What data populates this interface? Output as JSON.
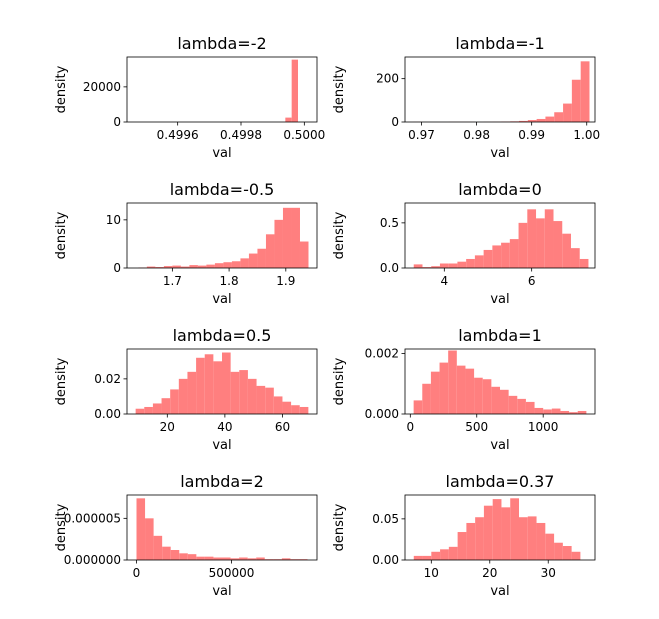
{
  "chart_data": [
    {
      "type": "bar",
      "title": "lambda=-2",
      "xlabel": "val",
      "ylabel": "density",
      "xlim": [
        0.49944,
        0.50004
      ],
      "ylim": [
        0,
        37000
      ],
      "xticks": [
        0.4996,
        0.4998,
        0.5
      ],
      "xtick_labels": [
        "0.4996",
        "0.4998",
        "0.5000"
      ],
      "yticks": [
        0,
        20000
      ],
      "ytick_labels": [
        "0",
        "20000"
      ],
      "bin_edges": [
        0.49994,
        0.49996,
        0.49998
      ],
      "values": [
        2500,
        35500
      ],
      "bar_color": "#ff7f7f"
    },
    {
      "type": "bar",
      "title": "lambda=-1",
      "xlabel": "val",
      "ylabel": "density",
      "xlim": [
        0.967,
        1.0015
      ],
      "ylim": [
        0,
        300
      ],
      "xticks": [
        0.97,
        0.98,
        0.99,
        1.0
      ],
      "xtick_labels": [
        "0.97",
        "0.98",
        "0.99",
        "1.00"
      ],
      "yticks": [
        0,
        200
      ],
      "ytick_labels": [
        "0",
        "200"
      ],
      "bin_edges": [
        0.9685,
        0.9701,
        0.9717,
        0.9733,
        0.9749,
        0.9765,
        0.9781,
        0.9797,
        0.9813,
        0.9829,
        0.9845,
        0.9861,
        0.9877,
        0.9893,
        0.9909,
        0.9925,
        0.9941,
        0.9957,
        0.9973,
        0.9989,
        1.0005
      ],
      "values": [
        0.5,
        0,
        0,
        0,
        0.5,
        0.5,
        0.5,
        0,
        0.5,
        1,
        2,
        3,
        5,
        9,
        14,
        25,
        45,
        85,
        195,
        280
      ],
      "bar_color": "#ff7f7f"
    },
    {
      "type": "bar",
      "title": "lambda=-0.5",
      "xlabel": "val",
      "ylabel": "density",
      "xlim": [
        1.62,
        1.955
      ],
      "ylim": [
        0,
        13.5
      ],
      "xticks": [
        1.7,
        1.8,
        1.9
      ],
      "xtick_labels": [
        "1.7",
        "1.8",
        "1.9"
      ],
      "yticks": [
        0,
        10
      ],
      "ytick_labels": [
        "0",
        "10"
      ],
      "bin_edges": [
        1.64,
        1.655,
        1.67,
        1.685,
        1.7,
        1.715,
        1.73,
        1.745,
        1.76,
        1.775,
        1.79,
        1.805,
        1.82,
        1.835,
        1.85,
        1.865,
        1.88,
        1.895,
        1.91,
        1.925,
        1.94
      ],
      "values": [
        0.1,
        0.3,
        0.2,
        0.4,
        0.5,
        0.3,
        0.6,
        0.5,
        0.7,
        1.0,
        1.2,
        1.4,
        2.0,
        3.0,
        4.0,
        7.0,
        10.0,
        12.5,
        12.5,
        5.5
      ],
      "bar_color": "#ff7f7f"
    },
    {
      "type": "bar",
      "title": "lambda=0",
      "xlabel": "val",
      "ylabel": "density",
      "xlim": [
        3.1,
        7.45
      ],
      "ylim": [
        0,
        0.72
      ],
      "xticks": [
        4,
        6
      ],
      "xtick_labels": [
        "4",
        "6"
      ],
      "yticks": [
        0,
        0.5
      ],
      "ytick_labels": [
        "0.0",
        "0.5"
      ],
      "bin_edges": [
        3.3,
        3.5,
        3.7,
        3.9,
        4.1,
        4.3,
        4.5,
        4.7,
        4.9,
        5.1,
        5.3,
        5.5,
        5.7,
        5.9,
        6.1,
        6.3,
        6.5,
        6.7,
        6.9,
        7.1,
        7.3
      ],
      "values": [
        0.04,
        0.01,
        0.02,
        0.05,
        0.05,
        0.07,
        0.1,
        0.14,
        0.2,
        0.25,
        0.28,
        0.32,
        0.5,
        0.65,
        0.55,
        0.65,
        0.52,
        0.38,
        0.22,
        0.1
      ],
      "bar_color": "#ff7f7f"
    },
    {
      "type": "bar",
      "title": "lambda=0.5",
      "xlabel": "val",
      "ylabel": "density",
      "xlim": [
        6,
        72
      ],
      "ylim": [
        0,
        0.037
      ],
      "xticks": [
        20,
        40,
        60
      ],
      "xtick_labels": [
        "20",
        "40",
        "60"
      ],
      "yticks": [
        0,
        0.02
      ],
      "ytick_labels": [
        "0.00",
        "0.02"
      ],
      "bin_edges": [
        9,
        12,
        15,
        18,
        21,
        24,
        27,
        30,
        33,
        36,
        39,
        42,
        45,
        48,
        51,
        54,
        57,
        60,
        63,
        66,
        69
      ],
      "values": [
        0.003,
        0.004,
        0.006,
        0.009,
        0.014,
        0.02,
        0.024,
        0.032,
        0.034,
        0.03,
        0.035,
        0.024,
        0.025,
        0.02,
        0.016,
        0.015,
        0.01,
        0.007,
        0.005,
        0.004
      ],
      "bar_color": "#ff7f7f"
    },
    {
      "type": "bar",
      "title": "lambda=1",
      "xlabel": "val",
      "ylabel": "density",
      "xlim": [
        -40,
        1390
      ],
      "ylim": [
        0,
        0.00215
      ],
      "xticks": [
        0,
        500,
        1000
      ],
      "xtick_labels": [
        "0",
        "500",
        "1000"
      ],
      "yticks": [
        0,
        0.002
      ],
      "ytick_labels": [
        "0.000",
        "0.002"
      ],
      "bin_edges": [
        25,
        90,
        155,
        220,
        285,
        350,
        415,
        480,
        545,
        610,
        675,
        740,
        805,
        870,
        935,
        1000,
        1065,
        1130,
        1195,
        1260,
        1325
      ],
      "values": [
        0.00045,
        0.001,
        0.0014,
        0.0017,
        0.0021,
        0.0016,
        0.0015,
        0.0012,
        0.00115,
        0.0009,
        0.0008,
        0.0006,
        0.0005,
        0.0004,
        0.0002,
        0.00015,
        0.00018,
        0.0001,
        6e-05,
        0.0001
      ],
      "bar_color": "#ff7f7f"
    },
    {
      "type": "bar",
      "title": "lambda=2",
      "xlabel": "val",
      "ylabel": "density",
      "xlim": [
        -50000,
        950000
      ],
      "ylim": [
        0,
        7.8e-06
      ],
      "xticks": [
        0,
        500000
      ],
      "xtick_labels": [
        "0",
        "500000"
      ],
      "yticks": [
        0,
        5e-06
      ],
      "ytick_labels": [
        "0.000000",
        "0.000005"
      ],
      "bin_edges": [
        0,
        45000,
        90000,
        135000,
        180000,
        225000,
        270000,
        315000,
        360000,
        405000,
        450000,
        495000,
        540000,
        585000,
        630000,
        675000,
        720000,
        765000,
        810000,
        855000,
        900000
      ],
      "values": [
        7.4e-06,
        5e-06,
        2.9e-06,
        1.6e-06,
        1.2e-06,
        8e-07,
        7e-07,
        4e-07,
        4e-07,
        3e-07,
        3e-07,
        2e-07,
        3e-07,
        2e-07,
        3e-07,
        1e-07,
        1e-07,
        2e-07,
        1e-07,
        1e-07
      ],
      "bar_color": "#ff7f7f"
    },
    {
      "type": "bar",
      "title": "lambda=0.37",
      "xlabel": "val",
      "ylabel": "density",
      "xlim": [
        5.5,
        38
      ],
      "ylim": [
        0,
        0.079
      ],
      "xticks": [
        10,
        20,
        30
      ],
      "xtick_labels": [
        "10",
        "20",
        "30"
      ],
      "yticks": [
        0,
        0.05
      ],
      "ytick_labels": [
        "0.00",
        "0.05"
      ],
      "bin_edges": [
        7,
        8.5,
        10,
        11.5,
        13,
        14.5,
        16,
        17.5,
        19,
        20.5,
        22,
        23.5,
        25,
        26.5,
        28,
        29.5,
        31,
        32.5,
        34,
        35.5,
        37
      ],
      "values": [
        0.005,
        0.005,
        0.01,
        0.013,
        0.016,
        0.034,
        0.045,
        0.052,
        0.066,
        0.074,
        0.064,
        0.075,
        0.052,
        0.053,
        0.045,
        0.032,
        0.021,
        0.017,
        0.01,
        0.0
      ],
      "bar_color": "#ff7f7f"
    }
  ]
}
